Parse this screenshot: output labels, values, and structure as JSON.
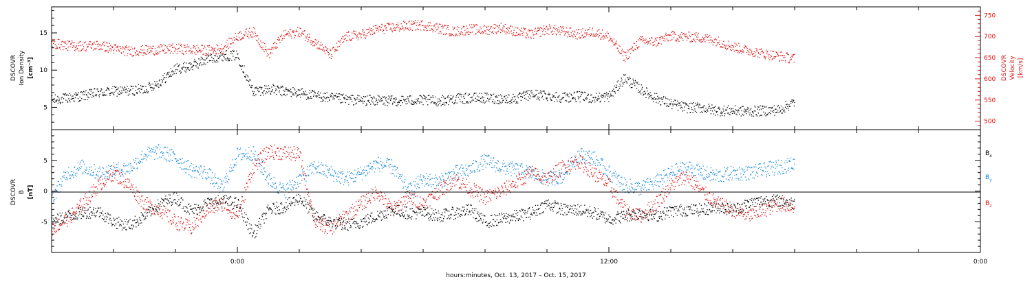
{
  "chart_data": [
    {
      "type": "scatter",
      "panel": "plasma",
      "left_axis_label": [
        "DSCOVR",
        "Ion Density",
        "[cm⁻³]"
      ],
      "right_axis_label": [
        "DSCOVR",
        "Velocity",
        "[km/s]"
      ],
      "ylim": [
        2,
        18.5
      ],
      "y_ticks": [
        5,
        10,
        15
      ],
      "y2lim": [
        480,
        770
      ],
      "y2_ticks": [
        500,
        550,
        600,
        650,
        700,
        750
      ],
      "x_unit": "hours since 2017-10-13 00:00",
      "xlim": [
        -6,
        24
      ],
      "series": [
        {
          "name": "density",
          "color": "#000000",
          "axis": "left",
          "x": [
            -6,
            -5.5,
            -5,
            -4.5,
            -4,
            -3.5,
            -3,
            -2.5,
            -2,
            -1.5,
            -1,
            -0.5,
            0,
            0.5,
            1,
            1.5,
            2,
            2.5,
            3,
            3.5,
            4,
            4.5,
            5,
            5.5,
            6,
            6.5,
            7,
            7.5,
            8,
            8.5,
            9,
            9.5,
            10,
            10.5,
            11,
            11.5,
            12,
            12.5,
            13,
            13.5,
            14,
            14.5,
            15,
            15.5,
            16,
            16.5,
            17,
            17.5,
            18
          ],
          "values": [
            6,
            6.3,
            6.6,
            7,
            7.2,
            7.3,
            7.5,
            8.5,
            10.2,
            10.6,
            11.5,
            12,
            12,
            7.2,
            7.5,
            7.2,
            7,
            6.6,
            6.3,
            6.1,
            6,
            6,
            5.9,
            6,
            6,
            5.9,
            6.2,
            6.3,
            6.3,
            6.2,
            6.2,
            6.8,
            6.6,
            6.4,
            6.5,
            6.3,
            6.5,
            9,
            7.5,
            6.3,
            5.5,
            5,
            5,
            4.6,
            4.6,
            4.5,
            4.6,
            4.7,
            5.8
          ]
        },
        {
          "name": "velocity",
          "color": "#dd1111",
          "axis": "right",
          "x": [
            -6,
            -5.5,
            -5,
            -4.5,
            -4,
            -3.5,
            -3,
            -2.5,
            -2,
            -1.5,
            -1,
            -0.5,
            0,
            0.5,
            1,
            1.5,
            2,
            2.5,
            3,
            3.5,
            4,
            4.5,
            5,
            5.5,
            6,
            6.5,
            7,
            7.5,
            8,
            8.5,
            9,
            9.5,
            10,
            10.5,
            11,
            11.5,
            12,
            12.5,
            13,
            13.5,
            14,
            14.5,
            15,
            15.5,
            16,
            16.5,
            17,
            17.5,
            18
          ],
          "values": [
            685,
            680,
            678,
            680,
            672,
            666,
            668,
            670,
            672,
            670,
            668,
            672,
            702,
            712,
            660,
            705,
            712,
            688,
            658,
            700,
            705,
            718,
            722,
            726,
            728,
            720,
            712,
            718,
            716,
            722,
            712,
            706,
            718,
            713,
            706,
            712,
            700,
            652,
            690,
            688,
            702,
            700,
            698,
            690,
            676,
            668,
            660,
            654,
            648
          ]
        }
      ]
    },
    {
      "type": "scatter",
      "panel": "magnetic_field",
      "left_axis_label": [
        "DSCOVR",
        "B",
        "[nT]"
      ],
      "legend": [
        "Bx",
        "By",
        "Bz"
      ],
      "ylim": [
        -10,
        10
      ],
      "y_ticks": [
        -5,
        0,
        5
      ],
      "zero_line": 0,
      "x_unit": "hours since 2017-10-13 00:00",
      "xlim": [
        -6,
        24
      ],
      "x_ticks": [
        "0:00",
        "12:00",
        "0:00"
      ],
      "x_tick_hours": [
        0,
        12,
        24
      ],
      "xlabel": "hours:minutes, Oct. 13, 2017 – Oct. 15, 2017",
      "series": [
        {
          "name": "Bx",
          "color": "#000000",
          "x": [
            -6,
            -5.5,
            -5,
            -4.5,
            -4,
            -3.5,
            -3,
            -2.5,
            -2,
            -1.5,
            -1,
            -0.5,
            0,
            0.5,
            1,
            1.5,
            2,
            2.5,
            3,
            3.5,
            4,
            4.5,
            5,
            5.5,
            6,
            6.5,
            7,
            7.5,
            8,
            8.5,
            9,
            9.5,
            10,
            10.5,
            11,
            11.5,
            12,
            12.5,
            13,
            13.5,
            14,
            14.5,
            15,
            15.5,
            16,
            16.5,
            17,
            17.5,
            18
          ],
          "values": [
            -5,
            -4,
            -3.5,
            -3.2,
            -5,
            -5.5,
            -4,
            -2,
            -1,
            -3.2,
            -2,
            -1.5,
            -2,
            -7,
            -3,
            -2.5,
            -1,
            -4,
            -5,
            -5.5,
            -5,
            -4,
            -3,
            -3.5,
            -3.5,
            -4,
            -3.5,
            -3,
            -5,
            -4.5,
            -4,
            -3.5,
            -2,
            -3,
            -3,
            -3.5,
            -4.5,
            -4,
            -3.5,
            -4,
            -3.2,
            -3,
            -3,
            -2.5,
            -3,
            -2,
            -1.5,
            -1.5,
            -2
          ]
        },
        {
          "name": "By",
          "color": "#1a88dd",
          "x": [
            -6,
            -5.5,
            -5,
            -4.5,
            -4,
            -3.5,
            -3,
            -2.5,
            -2,
            -1.5,
            -1,
            -0.5,
            0,
            0.5,
            1,
            1.5,
            2,
            2.5,
            3,
            3.5,
            4,
            4.5,
            5,
            5.5,
            6,
            6.5,
            7,
            7.5,
            8,
            8.5,
            9,
            9.5,
            10,
            10.5,
            11,
            11.5,
            12,
            12.5,
            13,
            13.5,
            14,
            14.5,
            15,
            15.5,
            16,
            16.5,
            17,
            17.5,
            18
          ],
          "values": [
            -1,
            3,
            4,
            3,
            3.5,
            3.8,
            6,
            6.5,
            5.5,
            3.5,
            3,
            0.5,
            6,
            6.2,
            2,
            0,
            2,
            4,
            3,
            2,
            3,
            4.5,
            4,
            0,
            2,
            1.5,
            3,
            3.5,
            5,
            4,
            3.5,
            3,
            2,
            2.5,
            6,
            5.5,
            3,
            1,
            0.5,
            1.5,
            3,
            4,
            3,
            2.5,
            3,
            3,
            3.5,
            4,
            4.5
          ]
        },
        {
          "name": "Bz",
          "color": "#dd1111",
          "x": [
            -6,
            -5.5,
            -5,
            -4.5,
            -4,
            -3.5,
            -3,
            -2.5,
            -2,
            -1.5,
            -1,
            -0.5,
            0,
            0.5,
            1,
            1.5,
            2,
            2.5,
            3,
            3.5,
            4,
            4.5,
            5,
            5.5,
            6,
            6.5,
            7,
            7.5,
            8,
            8.5,
            9,
            9.5,
            10,
            10.5,
            11,
            11.5,
            12,
            12.5,
            13,
            13.5,
            14,
            14.5,
            15,
            15.5,
            16,
            16.5,
            17,
            17.5,
            18
          ],
          "values": [
            -6,
            -4.5,
            -2,
            1,
            3,
            1,
            -2,
            -3,
            -5,
            -6,
            -3,
            -2,
            -4,
            4,
            6.5,
            6.3,
            6,
            -5,
            -6,
            -4,
            -2,
            0,
            -3,
            -1,
            -2,
            0,
            2,
            0.5,
            -1,
            0,
            1.5,
            3,
            2,
            4,
            5,
            3,
            1,
            -3,
            -4,
            -2,
            1,
            2.5,
            0,
            -2,
            -3,
            -4,
            -3,
            -2,
            -2.5
          ]
        }
      ]
    }
  ]
}
